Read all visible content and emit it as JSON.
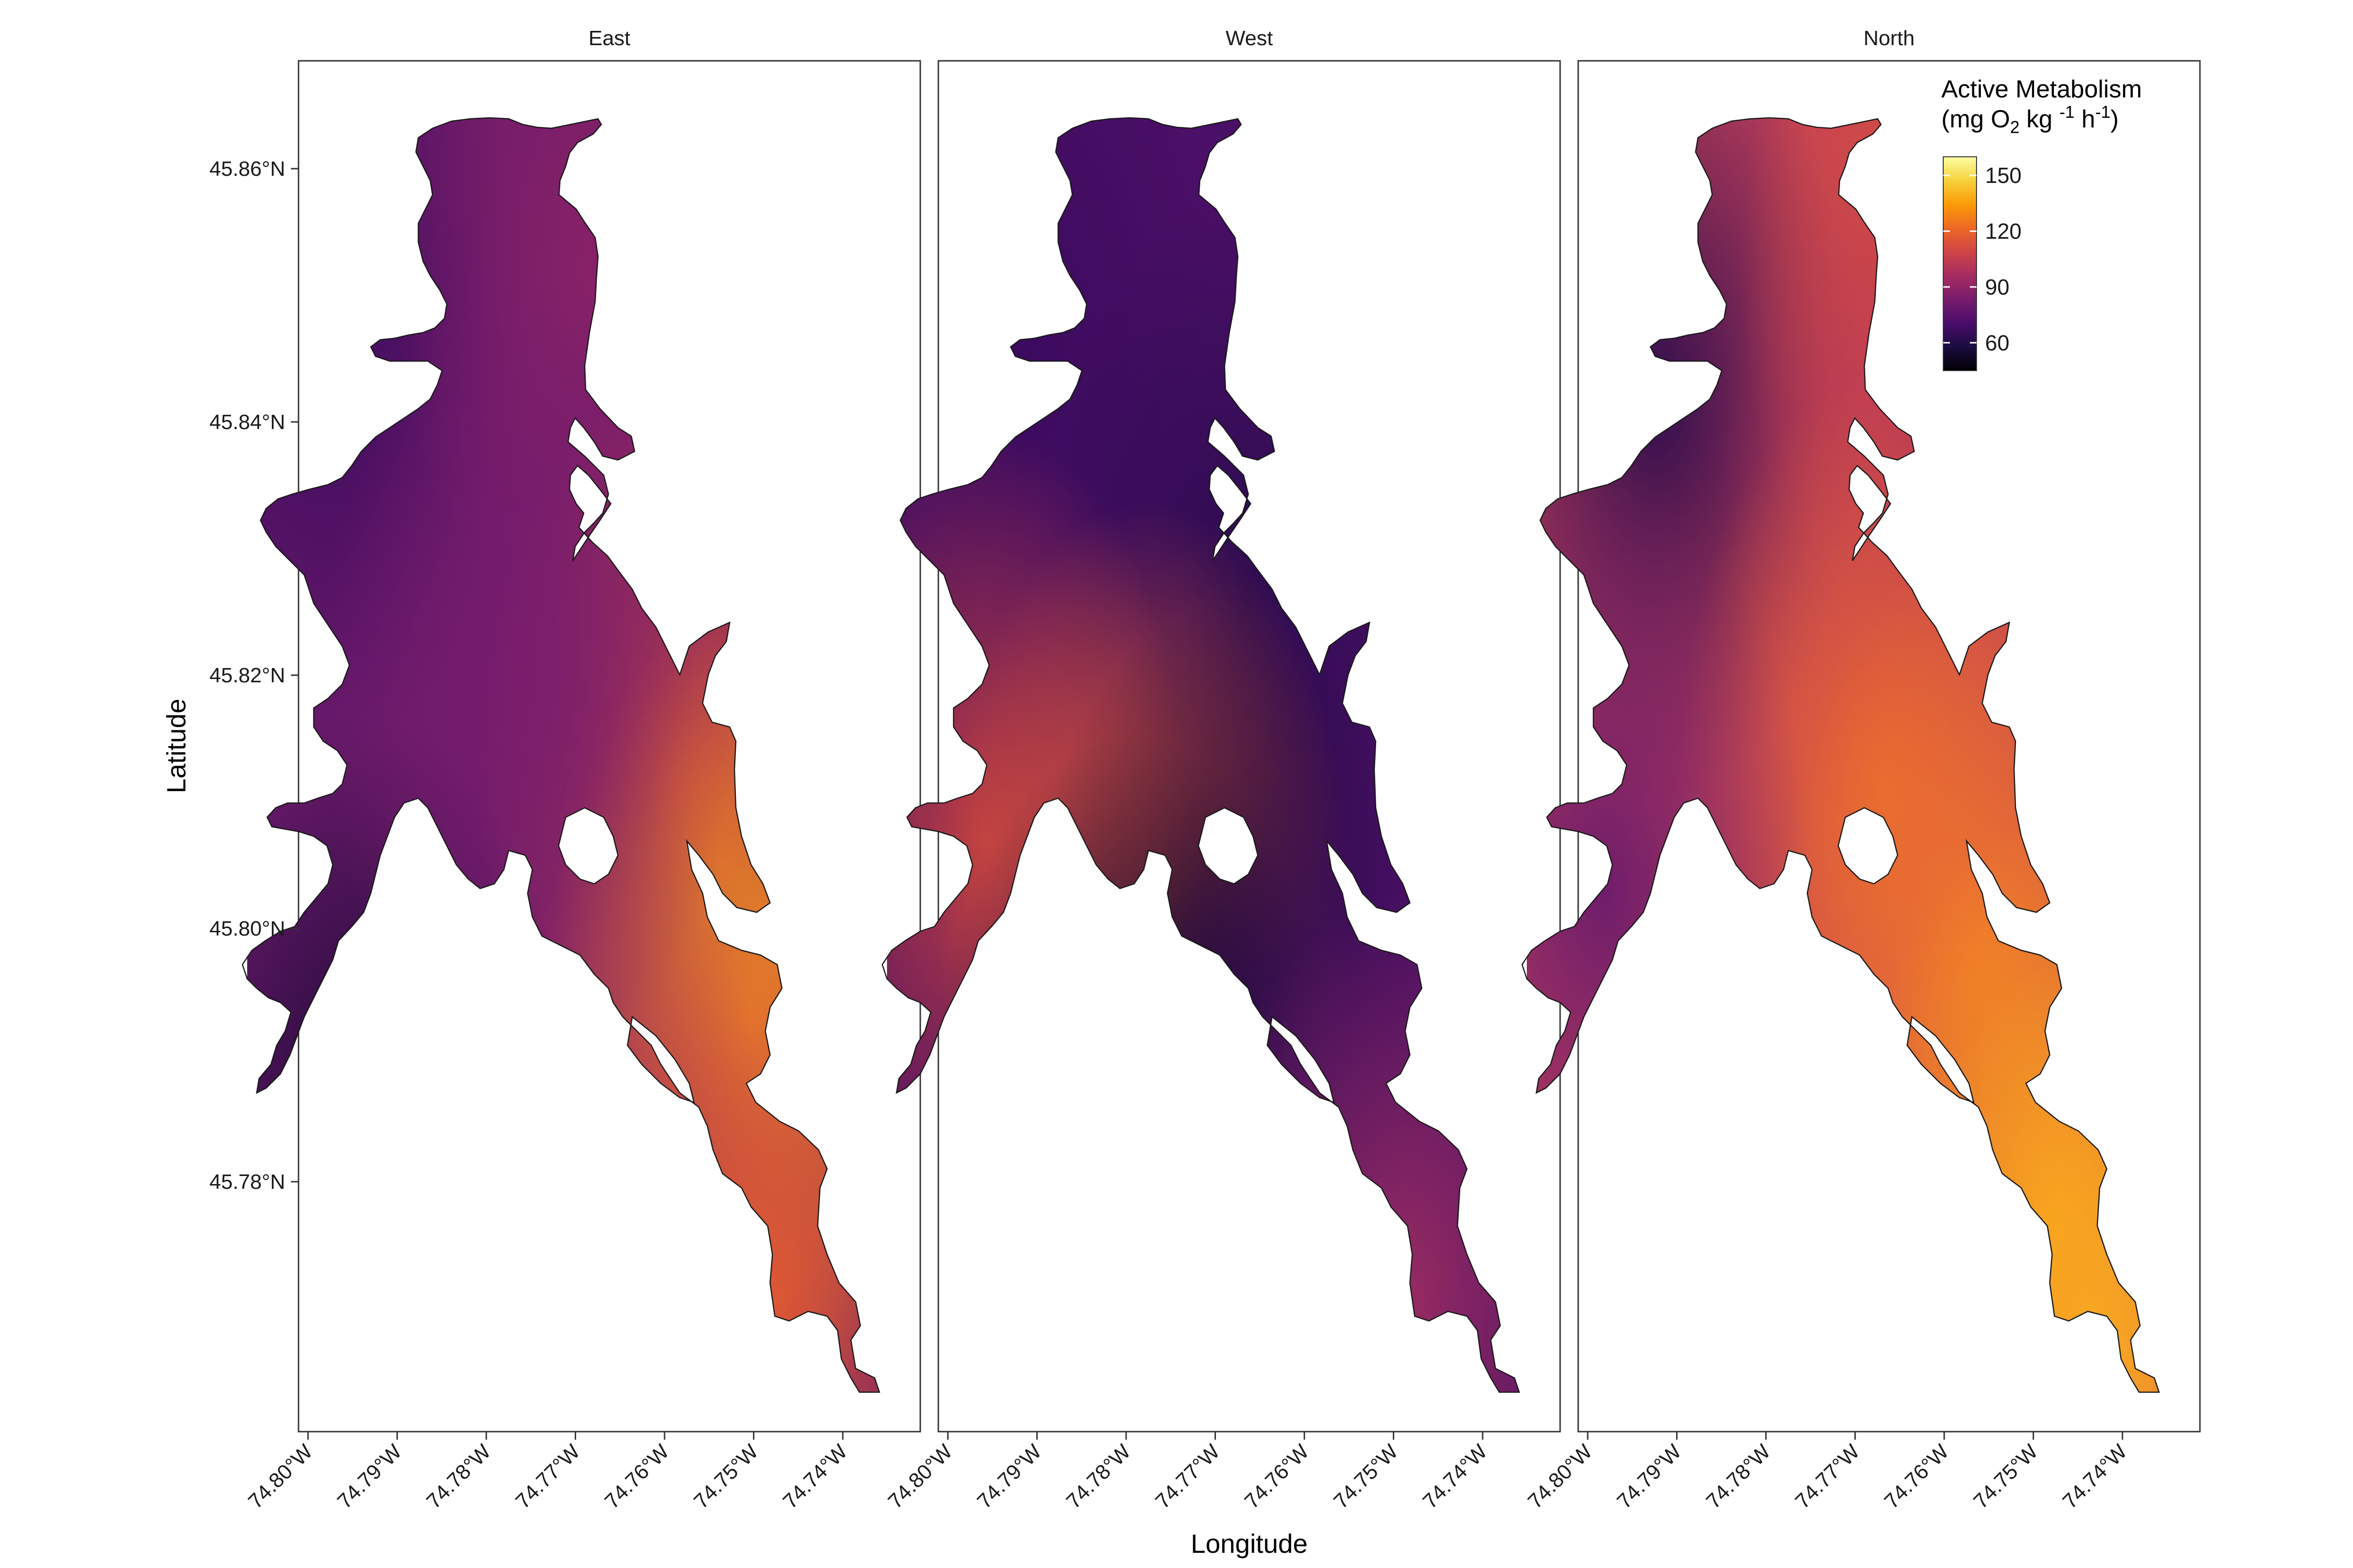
{
  "panels": [
    {
      "title": "East"
    },
    {
      "title": "West"
    },
    {
      "title": "North"
    }
  ],
  "axes": {
    "x_title": "Longitude",
    "y_title": "Latitude",
    "x_ticks": [
      "74.80°W",
      "74.79°W",
      "74.78°W",
      "74.77°W",
      "74.76°W",
      "74.75°W",
      "74.74°W"
    ],
    "x_tick_values": [
      -74.8,
      -74.79,
      -74.78,
      -74.77,
      -74.76,
      -74.75,
      -74.74
    ],
    "y_ticks": [
      "45.86°N",
      "45.84°N",
      "45.82°N",
      "45.80°N",
      "45.78°N"
    ],
    "y_tick_values": [
      45.86,
      45.84,
      45.82,
      45.8,
      45.78
    ]
  },
  "legend": {
    "title_line1": "Active Metabolism",
    "title_line2_a": "(mg O",
    "title_line2_sub": "2",
    "title_line2_b": " kg ",
    "title_line2_sup1": "-1",
    "title_line2_c": " h",
    "title_line2_sup2": "-1",
    "title_line2_d": ")",
    "ticks": [
      "150",
      "120",
      "90",
      "60"
    ],
    "tick_values": [
      150,
      120,
      90,
      60
    ],
    "range": [
      45,
      160
    ],
    "palette": "inferno",
    "palette_stops": [
      "#000004",
      "#1b0c41",
      "#4a0c6b",
      "#781c6d",
      "#a52c60",
      "#cf4446",
      "#ed6925",
      "#fb9b06",
      "#f7d13d",
      "#fcffa4"
    ]
  },
  "colors": {
    "panel_border": "#333333",
    "lake_outline": "#1a1a1a"
  }
}
